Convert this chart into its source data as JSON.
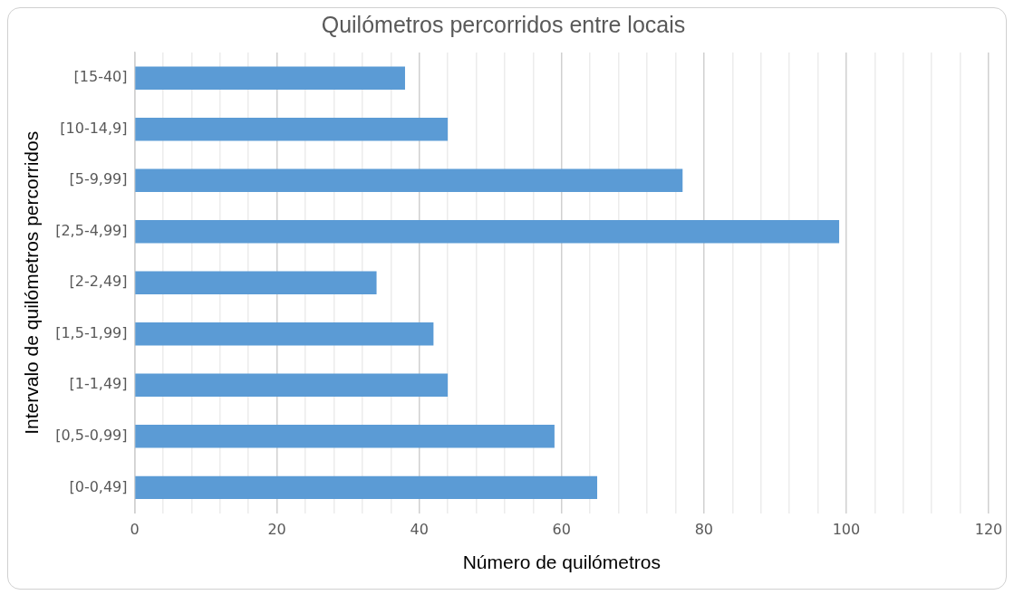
{
  "chart_data": {
    "type": "bar",
    "orientation": "horizontal",
    "title": "Quilómetros percorridos entre locais",
    "xlabel": "Número de quilómetros",
    "ylabel": "Intervalo de quilómetros percorridos",
    "categories": [
      "[15-40]",
      "[10-14,9]",
      "[5-9,99]",
      "[2,5-4,99]",
      "[2-2,49]",
      "[1,5-1,99]",
      "[1-1,49]",
      "[0,5-0,99]",
      "[0-0,49]"
    ],
    "values": [
      38,
      44,
      77,
      99,
      34,
      42,
      44,
      59,
      65
    ],
    "color": "#5b9bd5",
    "xlim": [
      0,
      120
    ],
    "xticks": [
      0,
      {
        "value": 4,
        "label": null
      },
      {
        "value": 8,
        "label": null
      },
      {
        "value": 12,
        "label": null
      },
      {
        "value": 16,
        "label": null
      },
      20,
      {
        "value": 24,
        "label": null
      },
      {
        "value": 28,
        "label": null
      },
      {
        "value": 32,
        "label": null
      },
      {
        "value": 36,
        "label": null
      },
      40,
      {
        "value": 44,
        "label": null
      },
      {
        "value": 48,
        "label": null
      },
      {
        "value": 52,
        "label": null
      },
      {
        "value": 56,
        "label": null
      },
      60,
      {
        "value": 64,
        "label": null
      },
      {
        "value": 68,
        "label": null
      },
      {
        "value": 72,
        "label": null
      },
      {
        "value": 76,
        "label": null
      },
      80,
      {
        "value": 84,
        "label": null
      },
      {
        "value": 88,
        "label": null
      },
      {
        "value": 92,
        "label": null
      },
      {
        "value": 96,
        "label": null
      },
      100,
      {
        "value": 104,
        "label": null
      },
      {
        "value": 108,
        "label": null
      },
      {
        "value": 112,
        "label": null
      },
      {
        "value": 116,
        "label": null
      },
      120
    ],
    "grid": "x",
    "legend": false
  }
}
